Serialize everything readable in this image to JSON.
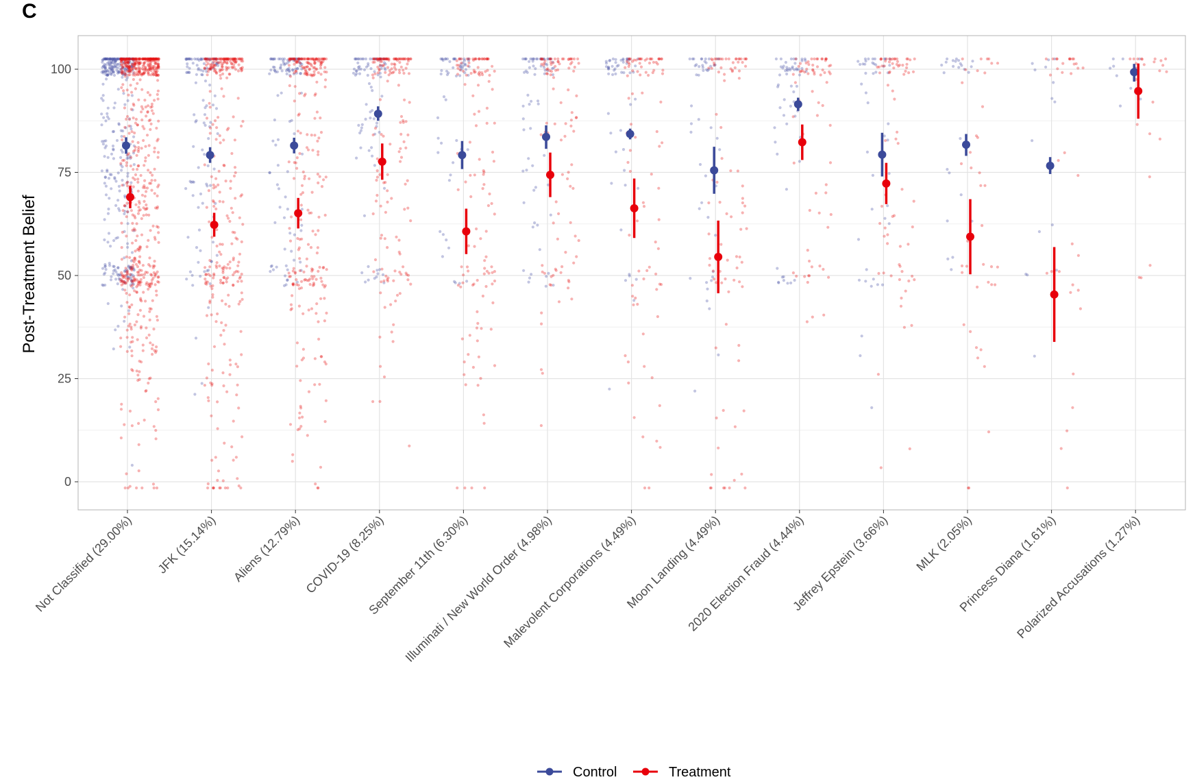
{
  "panel_label": "C",
  "colors": {
    "control": "#3b4a9a",
    "treatment": "#e8000b",
    "grid_major": "#e3e3e3",
    "grid_minor": "#f0f0f0",
    "panel_border": "#b3b3b3"
  },
  "chart_data": {
    "type": "scatter",
    "title": "",
    "xlabel": "",
    "ylabel": "Post-Treatment Belief",
    "ylim": [
      -7,
      108
    ],
    "yticks": [
      0,
      25,
      50,
      75,
      100
    ],
    "grid": true,
    "legend_position": "bottom",
    "categories": [
      "Not Classified  (29.00%)",
      "JFK  (15.14%)",
      "Aliens  (12.79%)",
      "COVID-19  (8.25%)",
      "September 11th  (6.30%)",
      "Illuminati / New World Order  (4.98%)",
      "Malevolent Corporations  (4.49%)",
      "Moon Landing  (4.49%)",
      "2020 Election Fraud  (4.44%)",
      "Jeffrey Epstein  (3.66%)",
      "MLK  (2.05%)",
      "Princess Diana  (1.61%)",
      "Polarized Accusations  (1.27%)"
    ],
    "series": [
      {
        "name": "Control",
        "color": "#3b4a9a",
        "mean": [
          81.5,
          79.2,
          81.5,
          89.2,
          79.2,
          83.6,
          84.3,
          75.5,
          91.5,
          79.3,
          81.7,
          76.6,
          99.3
        ],
        "ci_low": [
          79.5,
          77.3,
          79.6,
          87.5,
          75.8,
          80.7,
          83.0,
          69.8,
          89.9,
          74.0,
          79.0,
          74.6,
          97.0
        ],
        "ci_high": [
          83.5,
          81.1,
          83.4,
          91.0,
          82.6,
          86.4,
          85.6,
          81.2,
          93.1,
          84.6,
          84.3,
          78.7,
          101.3
        ],
        "n_points": [
          380,
          120,
          110,
          90,
          60,
          70,
          55,
          50,
          60,
          45,
          25,
          15,
          12
        ]
      },
      {
        "name": "Treatment",
        "color": "#e8000b",
        "mean": [
          69.0,
          62.3,
          65.1,
          77.6,
          60.7,
          74.4,
          66.3,
          54.5,
          82.3,
          72.3,
          59.4,
          45.4,
          94.7
        ],
        "ci_low": [
          66.3,
          59.4,
          61.4,
          73.2,
          55.2,
          69.0,
          59.1,
          45.7,
          78.0,
          67.3,
          50.3,
          33.9,
          88.0
        ],
        "ci_high": [
          71.7,
          65.2,
          68.8,
          82.0,
          66.2,
          79.8,
          73.5,
          63.3,
          86.6,
          77.3,
          68.5,
          56.9,
          101.4
        ],
        "n_points": [
          700,
          330,
          280,
          170,
          130,
          100,
          90,
          90,
          70,
          75,
          40,
          35,
          25
        ]
      }
    ]
  },
  "legend": {
    "items": [
      "Control",
      "Treatment"
    ]
  }
}
